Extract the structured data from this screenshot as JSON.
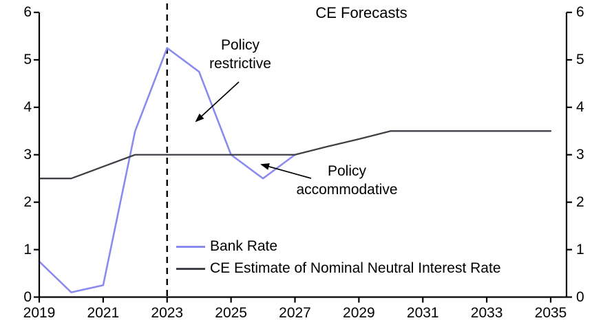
{
  "title": "CE Forecasts",
  "annotations": {
    "restrictive": {
      "line1": "Policy",
      "line2": "restrictive"
    },
    "accommodative": {
      "line1": "Policy",
      "line2": "accommodative"
    }
  },
  "legend": [
    {
      "label": "Bank Rate",
      "color": "#8b8bef"
    },
    {
      "label": "CE Estimate of Nominal Neutral Interest Rate",
      "color": "#3f3f45"
    }
  ],
  "colors": {
    "bank_rate_line": "#8b8bef",
    "neutral_rate_line": "#3f3f45",
    "axis": "#000000",
    "forecast_divider": "#000000",
    "background": "#ffffff"
  },
  "chart_data": {
    "type": "line",
    "title": "CE Forecasts",
    "xlabel": "",
    "ylabel": "",
    "xlim": [
      2019,
      2035.5
    ],
    "ylim": [
      0,
      6
    ],
    "x_ticks": [
      2019,
      2021,
      2023,
      2025,
      2027,
      2029,
      2031,
      2033,
      2035
    ],
    "y_ticks": [
      0,
      1,
      2,
      3,
      4,
      5,
      6
    ],
    "dual_y_axis": true,
    "grid": false,
    "forecast_divider_x": 2023,
    "legend_position": "inside-bottom-center",
    "series": [
      {
        "name": "Bank Rate",
        "color": "#8b8bef",
        "x": [
          2019,
          2020,
          2021,
          2022,
          2023,
          2024,
          2025,
          2026,
          2027
        ],
        "values": [
          0.75,
          0.1,
          0.25,
          3.5,
          5.25,
          4.75,
          3.0,
          2.5,
          3.0
        ]
      },
      {
        "name": "CE Estimate of Nominal Neutral Interest Rate",
        "color": "#3f3f45",
        "x": [
          2019,
          2020,
          2021,
          2022,
          2023,
          2024,
          2025,
          2026,
          2027,
          2028,
          2029,
          2030,
          2031,
          2032,
          2033,
          2034,
          2035
        ],
        "values": [
          2.5,
          2.5,
          2.75,
          3.0,
          3.0,
          3.0,
          3.0,
          3.0,
          3.0,
          3.17,
          3.33,
          3.5,
          3.5,
          3.5,
          3.5,
          3.5,
          3.5
        ]
      }
    ]
  }
}
